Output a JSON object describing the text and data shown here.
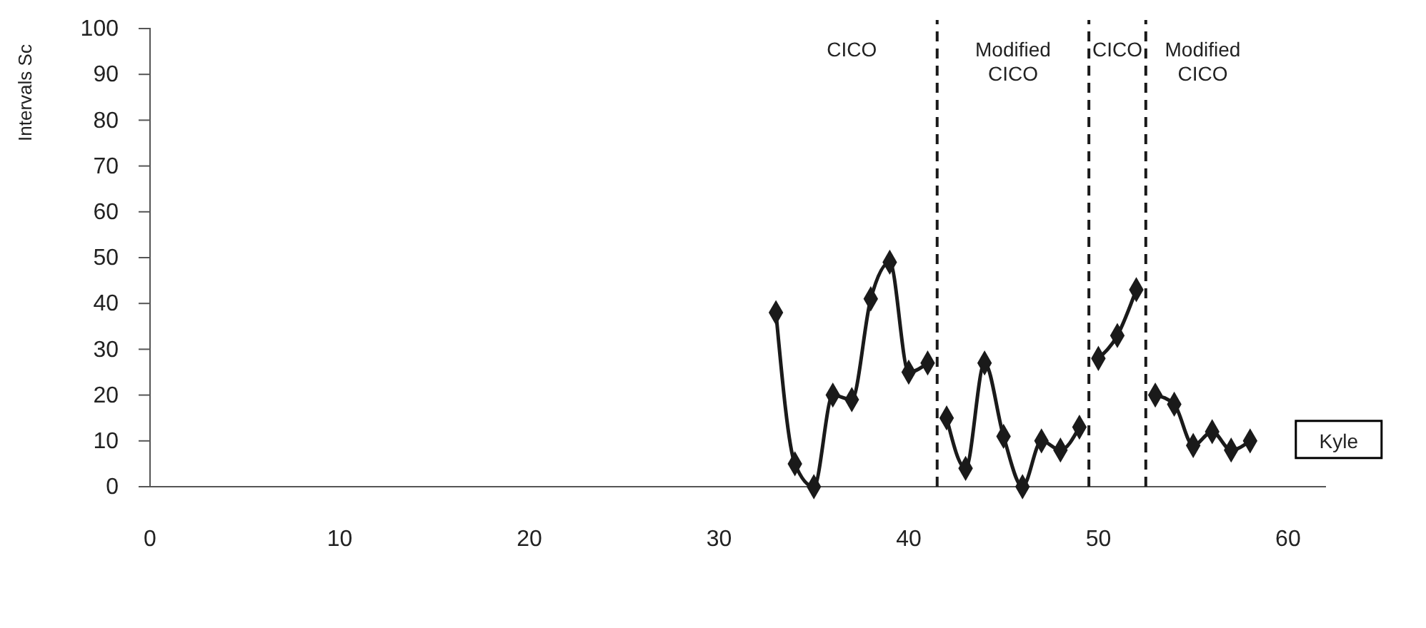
{
  "chart_data": {
    "type": "line",
    "ylabel": "Intervals Sc",
    "x": [
      33,
      34,
      35,
      36,
      37,
      38,
      39,
      40,
      41,
      41.5,
      42,
      43,
      44,
      45,
      46,
      47,
      48,
      49,
      49.5,
      50,
      51,
      52,
      52.5,
      53,
      54,
      55,
      56,
      57,
      58
    ],
    "series": [
      {
        "name": "Kyle",
        "color": "#1a1a1a",
        "values": [
          38,
          5,
          0,
          20,
          19,
          41,
          49,
          25,
          27,
          null,
          15,
          4,
          27,
          11,
          0,
          10,
          8,
          13,
          null,
          28,
          33,
          43,
          null,
          20,
          18,
          9,
          12,
          8,
          10
        ]
      }
    ],
    "xlim": [
      0,
      62
    ],
    "xticks": [
      0,
      10,
      20,
      30,
      40,
      50,
      60
    ],
    "ylim": [
      0,
      100
    ],
    "yticks": [
      0,
      10,
      20,
      30,
      40,
      50,
      60,
      70,
      80,
      90,
      100
    ],
    "grid": false,
    "marker": "diamond",
    "line_style": "solid",
    "ref_lines": [
      {
        "axis": "x",
        "value": 41.5,
        "line_style": "dashed",
        "color": "#1a1a1a"
      },
      {
        "axis": "x",
        "value": 49.5,
        "line_style": "dashed",
        "color": "#1a1a1a"
      },
      {
        "axis": "x",
        "value": 52.5,
        "line_style": "dashed",
        "color": "#1a1a1a"
      }
    ],
    "annotations": [
      "CICO",
      "Modified CICO",
      "CICO",
      "Modified CICO"
    ]
  }
}
